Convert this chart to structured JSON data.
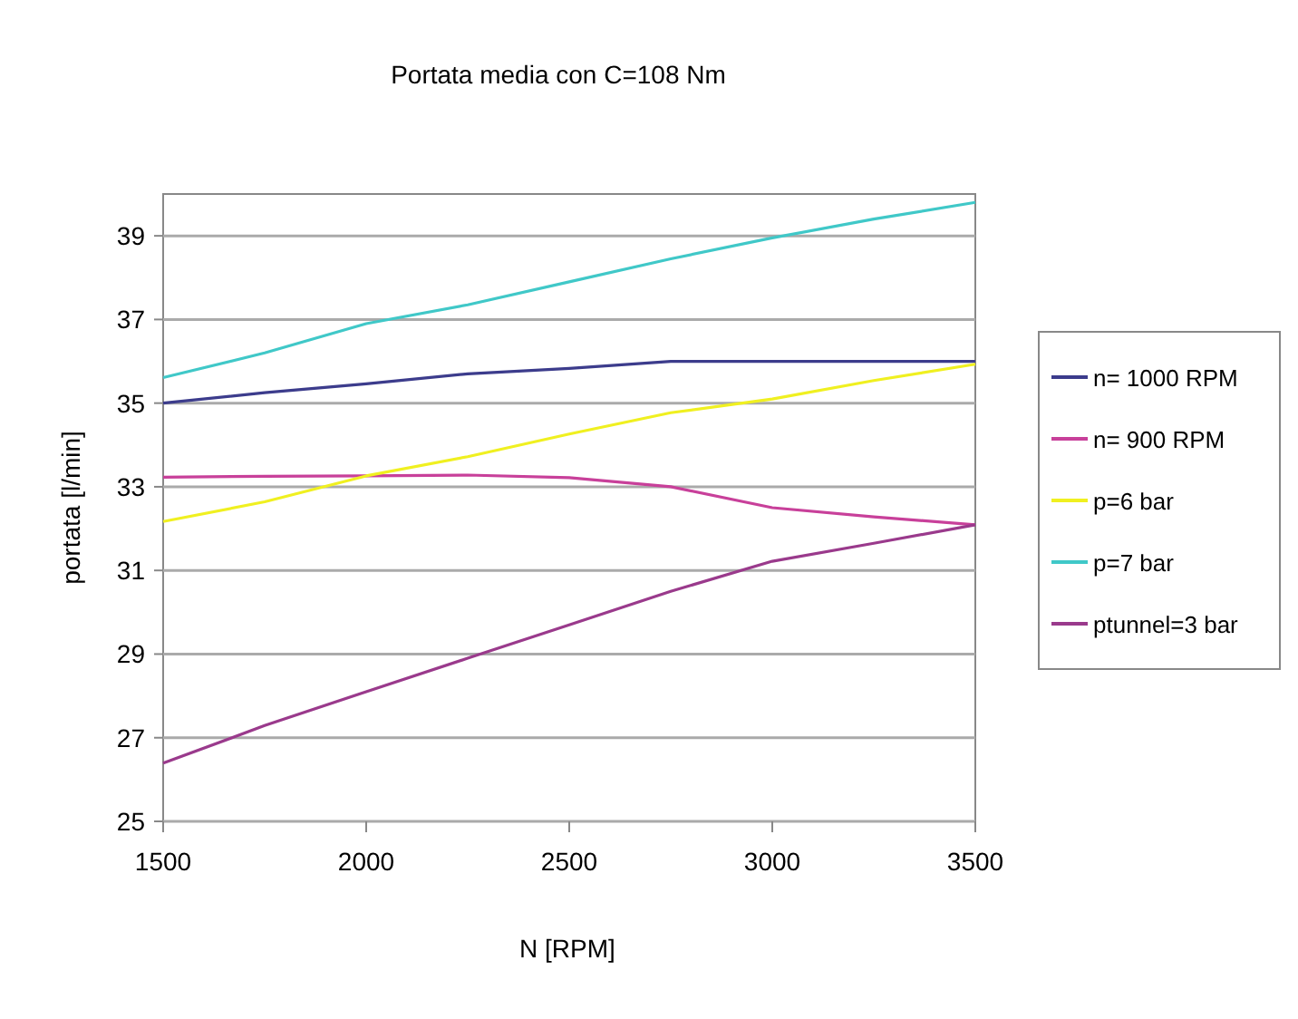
{
  "chart_data": {
    "type": "line",
    "title": "Portata media con C=108 Nm",
    "xlabel": "N [RPM]",
    "ylabel": "portata [l/min]",
    "x": [
      1500,
      1750,
      2000,
      2250,
      2500,
      2750,
      3000,
      3250,
      3500
    ],
    "xlim": [
      1500,
      3500
    ],
    "xticks": [
      1500,
      2000,
      2500,
      3000,
      3500
    ],
    "ylim": [
      25,
      40
    ],
    "yticks": [
      25,
      27,
      29,
      31,
      33,
      35,
      37,
      39
    ],
    "grid": "y",
    "legend": "right",
    "marker": "none",
    "line_style": "solid",
    "series": [
      {
        "name": "n= 1000 RPM",
        "color": "#3c3c8c",
        "values": [
          35.0,
          35.25,
          35.46,
          35.7,
          35.83,
          36.0,
          36.0,
          36.0,
          36.0
        ]
      },
      {
        "name": "n= 900 RPM",
        "color": "#c8409a",
        "values": [
          33.23,
          33.25,
          33.26,
          33.28,
          33.22,
          33.0,
          32.5,
          32.28,
          32.09
        ]
      },
      {
        "name": "p=6 bar",
        "color": "#f0f020",
        "values": [
          32.17,
          32.64,
          33.26,
          33.72,
          34.26,
          34.77,
          35.1,
          35.54,
          35.93
        ]
      },
      {
        "name": "p=7 bar",
        "color": "#40c8c8",
        "values": [
          35.61,
          36.2,
          36.9,
          37.35,
          37.9,
          38.45,
          38.95,
          39.4,
          39.8
        ]
      },
      {
        "name": "ptunnel=3 bar",
        "color": "#9a3a8c",
        "values": [
          26.39,
          27.29,
          28.1,
          28.9,
          29.7,
          30.5,
          31.22,
          31.65,
          32.09
        ]
      }
    ]
  }
}
